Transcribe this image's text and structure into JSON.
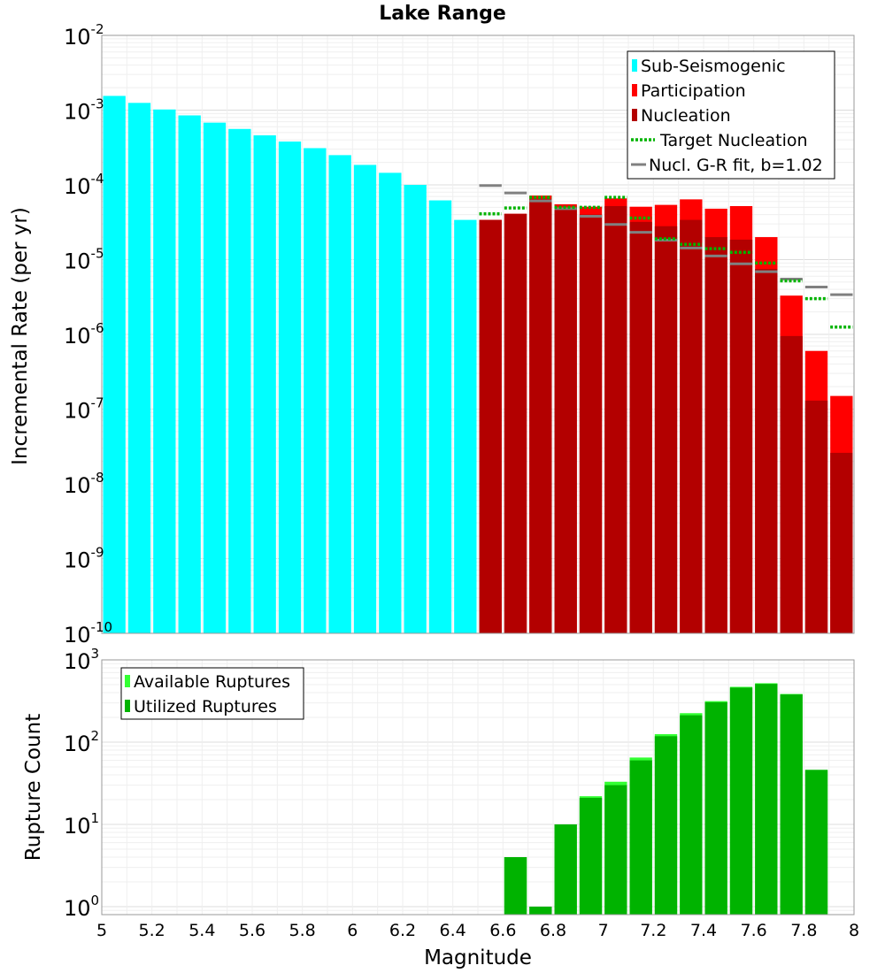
{
  "title": "Lake Range",
  "colors": {
    "sub_seismogenic": "#00ffff",
    "participation": "#ff0000",
    "nucleation": "#b30000",
    "target_nucleation": "#00b300",
    "gr_fit": "#808080",
    "available": "#33ff33",
    "utilized": "#00b300"
  },
  "chart_data": [
    {
      "type": "bar",
      "name": "rates",
      "title": "Lake Range",
      "xlabel": "",
      "ylabel": "Incremental Rate (per yr)",
      "xlim": [
        5,
        8
      ],
      "ylim": [
        1e-10,
        0.01
      ],
      "yscale": "log",
      "bin_width": 0.1,
      "ytick_exponents": [
        "-10",
        "-9",
        "-8",
        "-7",
        "-6",
        "-5",
        "-4",
        "-3",
        "-2"
      ],
      "ytick_base": "10",
      "series": [
        {
          "name": "Sub-Seismogenic",
          "key": "sub",
          "x": [
            5.05,
            5.15,
            5.25,
            5.35,
            5.45,
            5.55,
            5.65,
            5.75,
            5.85,
            5.95,
            6.05,
            6.15,
            6.25,
            6.35,
            6.45
          ],
          "values": [
            0.00155,
            0.00125,
            0.00102,
            0.00085,
            0.00068,
            0.00056,
            0.00046,
            0.00038,
            0.00031,
            0.00025,
            0.000185,
            0.000145,
            0.0001,
            6.2e-05,
            3.4e-05
          ]
        },
        {
          "name": "Participation",
          "key": "part",
          "x": [
            6.55,
            6.65,
            6.75,
            6.85,
            6.95,
            7.05,
            7.15,
            7.25,
            7.35,
            7.45,
            7.55,
            7.65,
            7.75,
            7.85,
            7.95
          ],
          "values": [
            3.4e-05,
            4.1e-05,
            7.2e-05,
            5.5e-05,
            5.1e-05,
            6.6e-05,
            5.1e-05,
            5.4e-05,
            6.4e-05,
            4.8e-05,
            5.2e-05,
            2e-05,
            3.3e-06,
            6e-07,
            1.5e-07
          ]
        },
        {
          "name": "Nucleation",
          "key": "nuc",
          "x": [
            6.55,
            6.65,
            6.75,
            6.85,
            6.95,
            7.05,
            7.15,
            7.25,
            7.35,
            7.45,
            7.55,
            7.65,
            7.75,
            7.85,
            7.95
          ],
          "values": [
            3.4e-05,
            4.1e-05,
            6.5e-05,
            5e-05,
            4e-05,
            5.2e-05,
            3.2e-05,
            2.8e-05,
            3.4e-05,
            2e-05,
            1.85e-05,
            7.5e-06,
            9.5e-07,
            1.3e-07,
            2.6e-08
          ]
        },
        {
          "name": "Target Nucleation",
          "key": "target",
          "x": [
            6.55,
            6.65,
            6.75,
            6.85,
            6.95,
            7.05,
            7.15,
            7.25,
            7.35,
            7.45,
            7.55,
            7.65,
            7.75,
            7.85,
            7.95
          ],
          "values": [
            4.1e-05,
            4.9e-05,
            6.8e-05,
            5e-05,
            5e-05,
            6.8e-05,
            3.6e-05,
            1.9e-05,
            1.6e-05,
            1.4e-05,
            1.25e-05,
            9e-06,
            5.2e-06,
            3e-06,
            1.25e-06
          ]
        },
        {
          "name": "Nucl. G-R fit, b=1.02",
          "key": "gr",
          "x": [
            6.55,
            6.65,
            6.75,
            6.85,
            6.95,
            7.05,
            7.15,
            7.25,
            7.35,
            7.45,
            7.55,
            7.65,
            7.75,
            7.85,
            7.95
          ],
          "values": [
            9.8e-05,
            7.8e-05,
            6.1e-05,
            4.8e-05,
            3.8e-05,
            2.95e-05,
            2.32e-05,
            1.82e-05,
            1.43e-05,
            1.12e-05,
            8.8e-06,
            6.9e-06,
            5.5e-06,
            4.3e-06,
            3.4e-06
          ]
        }
      ],
      "legend": [
        "Sub-Seismogenic",
        "Participation",
        "Nucleation",
        "Target Nucleation",
        "Nucl. G-R fit, b=1.02"
      ],
      "legend_position": "top-right"
    },
    {
      "type": "bar",
      "name": "counts",
      "xlabel": "Magnitude",
      "ylabel": "Rupture Count",
      "xlim": [
        5,
        8
      ],
      "ylim": [
        0.8,
        1000
      ],
      "yscale": "log",
      "bin_width": 0.1,
      "xticks": [
        "5",
        "5.2",
        "5.4",
        "5.6",
        "5.8",
        "6",
        "6.2",
        "6.4",
        "6.6",
        "6.8",
        "7",
        "7.2",
        "7.4",
        "7.6",
        "7.8",
        "8"
      ],
      "ytick_exponents": [
        "0",
        "1",
        "2",
        "3"
      ],
      "ytick_base": "10",
      "series": [
        {
          "name": "Available Ruptures",
          "key": "avail",
          "x": [
            6.65,
            6.75,
            6.85,
            6.95,
            7.05,
            7.15,
            7.25,
            7.35,
            7.45,
            7.55,
            7.65,
            7.75,
            7.85
          ],
          "values": [
            4,
            1,
            10,
            22,
            33,
            65,
            125,
            225,
            315,
            470,
            520,
            385,
            46
          ]
        },
        {
          "name": "Utilized Ruptures",
          "key": "util",
          "x": [
            6.65,
            6.75,
            6.85,
            6.95,
            7.05,
            7.15,
            7.25,
            7.35,
            7.45,
            7.55,
            7.65,
            7.75,
            7.85
          ],
          "values": [
            4,
            1,
            10,
            21,
            30,
            60,
            118,
            212,
            305,
            460,
            510,
            380,
            46
          ]
        }
      ],
      "legend": [
        "Available Ruptures",
        "Utilized Ruptures"
      ],
      "legend_position": "top-left"
    }
  ]
}
